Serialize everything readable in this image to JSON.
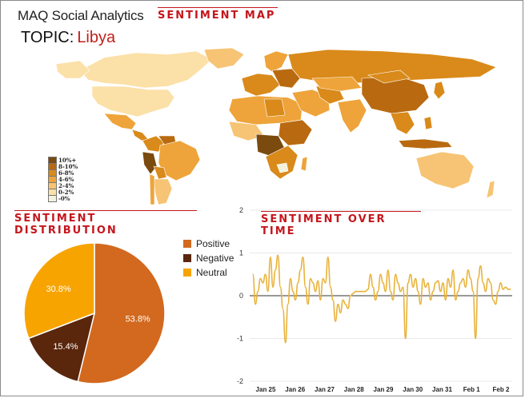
{
  "header": {
    "app_title": "MAQ Social Analytics",
    "topic_label": "TOPIC:",
    "topic_value": "Libya"
  },
  "sections": {
    "map": "SENTIMENT MAP",
    "distribution": "SENTIMENT DISTRIBUTION",
    "over_time": "SENTIMENT OVER TIME"
  },
  "map_legend": [
    {
      "label": "10%+",
      "color": "#7a4a0e"
    },
    {
      "label": "8-10%",
      "color": "#b96a10"
    },
    {
      "label": "6-8%",
      "color": "#d98a1a"
    },
    {
      "label": "4-6%",
      "color": "#eea43a"
    },
    {
      "label": "2-4%",
      "color": "#f6c474"
    },
    {
      "label": "0-2%",
      "color": "#fbe0a8"
    },
    {
      "label": "-0%",
      "color": "#f4f1dc"
    }
  ],
  "colors": {
    "accent": "#c4161c",
    "positive": "#d2691e",
    "negative": "#5a260c",
    "neutral": "#f7a400",
    "line": "#e8b23a",
    "ocean": "#ffffff"
  },
  "chart_data": [
    {
      "type": "pie",
      "title": "SENTIMENT DISTRIBUTION",
      "slices": [
        {
          "name": "Positive",
          "value": 53.8,
          "label": "53.8%",
          "color": "#d2691e"
        },
        {
          "name": "Negative",
          "value": 15.4,
          "label": "15.4%",
          "color": "#5a260c"
        },
        {
          "name": "Neutral",
          "value": 30.8,
          "label": "30.8%",
          "color": "#f7a400"
        }
      ],
      "legend": "right"
    },
    {
      "type": "line",
      "title": "SENTIMENT OVER TIME",
      "ylim": [
        -2,
        2
      ],
      "yticks": [
        "2",
        "1",
        "0",
        "-1",
        "-2"
      ],
      "ytick_values": [
        2,
        1,
        0,
        -1,
        -2
      ],
      "xticks": [
        "Jan 25",
        "Jan 26",
        "Jan 27",
        "Jan 28",
        "Jan 29",
        "Jan 30",
        "Jan 31",
        "Feb 1",
        "Feb 2"
      ],
      "grid": true,
      "series": [
        {
          "values": [
            0.5,
            -0.2,
            0.1,
            0.4,
            0.3,
            0.5,
            0.1,
            0.9,
            0.2,
            0.6,
            0.95,
            0.2,
            -0.3,
            -1.1,
            -0.2,
            0.4,
            0.1,
            -0.1,
            0.3,
            0.6,
            0.9,
            0.2,
            -0.2,
            0.4,
            0.3,
            0.1,
            0.35,
            -0.1,
            0.4,
            0.3,
            0.9,
            0.2,
            -0.1,
            -0.6,
            -0.2,
            -0.4,
            -0.1,
            -0.2,
            -0.3,
            0.0,
            0.05,
            0.1,
            0.1,
            0.1,
            0.1,
            0.1,
            0.15,
            0.5,
            0.2,
            -0.1,
            0.1,
            0.5,
            0.3,
            0.1,
            0.6,
            0.1,
            -0.1,
            0.5,
            0.3,
            0.1,
            0.2,
            -1.0,
            0.3,
            0.5,
            0.2,
            0.4,
            0.1,
            -0.2,
            0.4,
            0.2,
            0.3,
            -0.1,
            0.1,
            0.3,
            0.35,
            0.1,
            0.3,
            -0.1,
            0.4,
            0.2,
            0.6,
            -0.1,
            0.1,
            0.3,
            0.4,
            0.2,
            0.6,
            0.4,
            0.1,
            -1.0,
            0.4,
            0.7,
            0.3,
            0.1,
            0.4,
            0.3,
            -0.1,
            -0.2,
            0.1,
            0.3,
            0.15,
            0.2,
            0.15,
            0.15
          ]
        }
      ]
    }
  ]
}
